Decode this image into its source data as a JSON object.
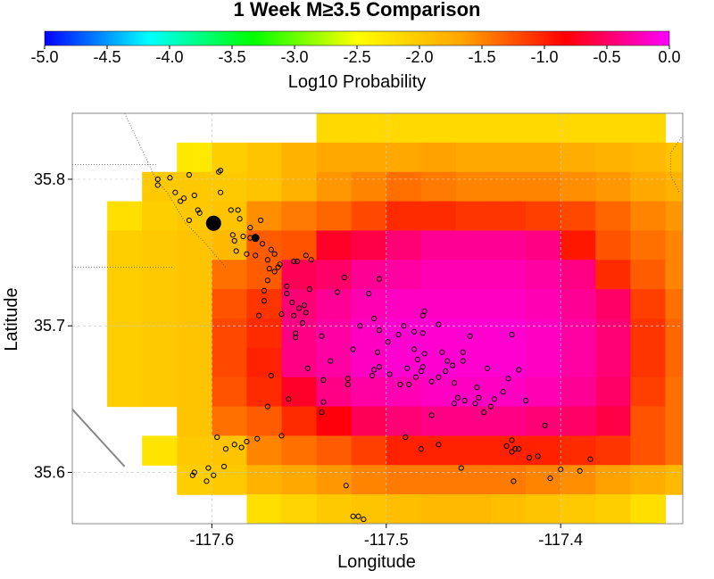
{
  "chart_data": {
    "type": "heatmap",
    "title": "1 Week M≥3.5 Comparison",
    "colorbar": {
      "label": "Log10 Probability",
      "range": [
        -5.0,
        0.0
      ],
      "tick_labels": [
        "-5.0",
        "-4.5",
        "-4.0",
        "-3.5",
        "-3.0",
        "-2.5",
        "-2.0",
        "-1.5",
        "-1.0",
        "-0.5",
        "0.0"
      ],
      "stops": [
        "#0000ff",
        "#00ffff",
        "#00ff00",
        "#ffff00",
        "#ffa500",
        "#ff0000",
        "#ff00ff"
      ]
    },
    "xlabel": "Longitude",
    "ylabel": "Latitude",
    "xlim": [
      -117.68,
      -117.33
    ],
    "ylim": [
      35.565,
      35.845
    ],
    "xticks": [
      -117.6,
      -117.5,
      -117.4
    ],
    "xtick_labels": [
      "-117.6",
      "-117.5",
      "-117.4"
    ],
    "yticks": [
      35.6,
      35.7,
      35.8
    ],
    "ytick_labels": [
      "35.6",
      "35.7",
      "35.8"
    ],
    "grid": true,
    "cell_size": {
      "lon": 0.02,
      "lat": 0.02
    },
    "cells": [
      {
        "row_lat": 35.835,
        "lon_start": -117.54,
        "values": [
          -2.15,
          -2.15,
          -2.15,
          -2.15,
          -2.15,
          -2.15,
          -2.15,
          -2.15,
          -2.15,
          -2.15
        ]
      },
      {
        "row_lat": 35.815,
        "lon_start": -117.62,
        "values": [
          -2.3,
          -2.05,
          -1.95,
          -1.8,
          -1.7,
          -1.7,
          -1.7,
          -1.65,
          -1.7,
          -1.7,
          -1.7,
          -1.75,
          -1.8,
          -1.85,
          -1.95,
          -2.05,
          -2.3
        ]
      },
      {
        "row_lat": 35.795,
        "lon_start": -117.64,
        "values": [
          -2.0,
          -2.0,
          -2.0,
          -1.95,
          -1.8,
          -1.6,
          -1.5,
          -1.4,
          -1.45,
          -1.5,
          -1.5,
          -1.5,
          -1.55,
          -1.6,
          -1.7,
          -1.8,
          -1.85,
          -1.95,
          -2.05,
          -2.3
        ]
      },
      {
        "row_lat": 35.775,
        "lon_start": -117.66,
        "values": [
          -2.2,
          -2.05,
          -2.0,
          -1.95,
          -1.55,
          -1.45,
          -1.35,
          -1.2,
          -1.05,
          -1.05,
          -1.1,
          -1.1,
          -1.15,
          -1.2,
          -1.35,
          -1.5,
          -1.6,
          -1.7,
          -1.8,
          -1.9,
          -2.1
        ]
      },
      {
        "row_lat": 35.755,
        "lon_start": -117.66,
        "values": [
          -2.05,
          -2.0,
          -1.95,
          -1.85,
          -1.3,
          -1.25,
          -0.7,
          -0.6,
          -0.45,
          -0.35,
          -0.35,
          -0.35,
          -0.4,
          -0.95,
          -1.25,
          -1.4,
          -1.5,
          -1.65,
          -1.75,
          -1.9,
          -2.0
        ]
      },
      {
        "row_lat": 35.735,
        "lon_start": -117.66,
        "values": [
          -2.05,
          -2.0,
          -1.95,
          -1.4,
          -1.3,
          -0.55,
          -0.5,
          -0.35,
          -0.3,
          -0.25,
          -0.25,
          -0.25,
          -0.3,
          -0.4,
          -1.05,
          -1.3,
          -1.5,
          -1.6,
          -1.75,
          -1.9,
          -2.1,
          -2.15
        ]
      },
      {
        "row_lat": 35.715,
        "lon_start": -117.66,
        "values": [
          -2.05,
          -2.0,
          -1.95,
          -1.25,
          -1.1,
          -0.45,
          -0.35,
          -0.25,
          -0.2,
          -0.2,
          -0.2,
          -0.2,
          -0.25,
          -0.35,
          -0.5,
          -1.15,
          -1.4,
          -1.55,
          -1.7,
          -1.85,
          -2.0,
          -2.1
        ]
      },
      {
        "row_lat": 35.695,
        "lon_start": -117.66,
        "values": [
          -2.05,
          -2.0,
          -1.95,
          -1.2,
          -1.05,
          -0.4,
          -0.3,
          -0.2,
          -0.15,
          -0.15,
          -0.15,
          -0.15,
          -0.2,
          -0.3,
          -0.45,
          -1.1,
          -1.35,
          -1.5,
          -1.7,
          -1.85,
          -2.0,
          -2.1
        ]
      },
      {
        "row_lat": 35.675,
        "lon_start": -117.66,
        "values": [
          -2.05,
          -2.0,
          -1.95,
          -1.2,
          -1.0,
          -0.4,
          -0.3,
          -0.2,
          -0.15,
          -0.15,
          -0.15,
          -0.15,
          -0.2,
          -0.3,
          -0.45,
          -1.1,
          -1.35,
          -1.5,
          -1.7,
          -1.85,
          -2.0,
          -2.05
        ]
      },
      {
        "row_lat": 35.655,
        "lon_start": -117.66,
        "values": [
          -2.05,
          -2.0,
          -1.95,
          -1.25,
          -1.05,
          -0.7,
          -0.4,
          -0.3,
          -0.25,
          -0.2,
          -0.2,
          -0.2,
          -0.25,
          -0.35,
          -0.5,
          -1.15,
          -1.4,
          -1.55,
          -1.7,
          -1.85,
          -2.0,
          -2.2
        ]
      },
      {
        "row_lat": 35.635,
        "lon_start": -117.62,
        "values": [
          -1.95,
          -1.4,
          -1.3,
          -1.05,
          -0.8,
          -0.55,
          -0.45,
          -0.4,
          -0.4,
          -0.4,
          -0.45,
          -0.5,
          -0.6,
          -1.25,
          -1.4,
          -1.55,
          -1.7,
          -1.85
        ]
      },
      {
        "row_lat": 35.615,
        "lon_start": -117.64,
        "values": [
          -2.25,
          -2.0,
          -1.95,
          -1.5,
          -1.4,
          -1.3,
          -1.15,
          -1.0,
          -1.0,
          -1.0,
          -1.0,
          -1.0,
          -1.05,
          -1.1,
          -1.25,
          -1.4,
          -1.55,
          -1.7,
          -1.85,
          -2.0
        ]
      },
      {
        "row_lat": 35.595,
        "lon_start": -117.62,
        "values": [
          -2.05,
          -2.0,
          -1.8,
          -1.7,
          -1.6,
          -1.5,
          -1.45,
          -1.45,
          -1.45,
          -1.45,
          -1.5,
          -1.55,
          -1.65,
          -1.75,
          -1.85,
          -1.95,
          -2.0,
          -2.1
        ]
      },
      {
        "row_lat": 35.575,
        "lon_start": -117.58,
        "values": [
          -2.2,
          -2.1,
          -2.0,
          -1.95,
          -1.9,
          -1.85,
          -1.85,
          -1.9,
          -1.95,
          -2.0,
          -2.05,
          -2.2
        ]
      }
    ],
    "mainshocks": [
      {
        "lon": -117.599,
        "lat": 35.77,
        "size": "large"
      },
      {
        "lon": -117.575,
        "lat": 35.76,
        "size": "medium"
      }
    ],
    "events": [
      [
        -117.631,
        35.8
      ],
      [
        -117.631,
        35.796
      ],
      [
        -117.624,
        35.801
      ],
      [
        -117.621,
        35.791
      ],
      [
        -117.616,
        35.787
      ],
      [
        -117.618,
        35.785
      ],
      [
        -117.613,
        35.803
      ],
      [
        -117.61,
        35.789
      ],
      [
        -117.608,
        35.779
      ],
      [
        -117.607,
        35.777
      ],
      [
        -117.613,
        35.772
      ],
      [
        -117.595,
        35.806
      ],
      [
        -117.596,
        35.805
      ],
      [
        -117.595,
        35.791
      ],
      [
        -117.589,
        35.779
      ],
      [
        -117.585,
        35.779
      ],
      [
        -117.584,
        35.773
      ],
      [
        -117.572,
        35.772
      ],
      [
        -117.578,
        35.767
      ],
      [
        -117.582,
        35.761
      ],
      [
        -117.587,
        35.758
      ],
      [
        -117.588,
        35.762
      ],
      [
        -117.578,
        35.76
      ],
      [
        -117.571,
        35.756
      ],
      [
        -117.566,
        35.752
      ],
      [
        -117.568,
        35.745
      ],
      [
        -117.575,
        35.748
      ],
      [
        -117.586,
        35.751
      ],
      [
        -117.58,
        35.749
      ],
      [
        -117.564,
        35.749
      ],
      [
        -117.562,
        35.74
      ],
      [
        -117.564,
        35.737
      ],
      [
        -117.561,
        35.742
      ],
      [
        -117.553,
        35.744
      ],
      [
        -117.551,
        35.744
      ],
      [
        -117.546,
        35.748
      ],
      [
        -117.543,
        35.745
      ],
      [
        -117.567,
        35.739
      ],
      [
        -117.568,
        35.731
      ],
      [
        -117.557,
        35.722
      ],
      [
        -117.557,
        35.727
      ],
      [
        -117.57,
        35.724
      ],
      [
        -117.554,
        35.716
      ],
      [
        -117.55,
        35.712
      ],
      [
        -117.553,
        35.707
      ],
      [
        -117.547,
        35.714
      ],
      [
        -117.544,
        35.725
      ],
      [
        -117.546,
        35.709
      ],
      [
        -117.548,
        35.702
      ],
      [
        -117.573,
        35.707
      ],
      [
        -117.57,
        35.717
      ],
      [
        -117.56,
        35.708
      ],
      [
        -117.552,
        35.695
      ],
      [
        -117.552,
        35.692
      ],
      [
        -117.566,
        35.666
      ],
      [
        -117.524,
        35.733
      ],
      [
        -117.528,
        35.723
      ],
      [
        -117.51,
        35.722
      ],
      [
        -117.504,
        35.732
      ],
      [
        -117.537,
        35.693
      ],
      [
        -117.515,
        35.7
      ],
      [
        -117.519,
        35.684
      ],
      [
        -117.507,
        35.705
      ],
      [
        -117.504,
        35.697
      ],
      [
        -117.505,
        35.682
      ],
      [
        -117.499,
        35.689
      ],
      [
        -117.493,
        35.694
      ],
      [
        -117.49,
        35.7
      ],
      [
        -117.484,
        35.696
      ],
      [
        -117.478,
        35.71
      ],
      [
        -117.479,
        35.707
      ],
      [
        -117.47,
        35.701
      ],
      [
        -117.479,
        35.695
      ],
      [
        -117.484,
        35.684
      ],
      [
        -117.498,
        35.667
      ],
      [
        -117.504,
        35.672
      ],
      [
        -117.488,
        35.671
      ],
      [
        -117.482,
        35.677
      ],
      [
        -117.478,
        35.681
      ],
      [
        -117.468,
        35.682
      ],
      [
        -117.465,
        35.676
      ],
      [
        -117.462,
        35.673
      ],
      [
        -117.466,
        35.669
      ],
      [
        -117.47,
        35.665
      ],
      [
        -117.474,
        35.662
      ],
      [
        -117.479,
        35.672
      ],
      [
        -117.48,
        35.669
      ],
      [
        -117.483,
        35.665
      ],
      [
        -117.487,
        35.66
      ],
      [
        -117.492,
        35.66
      ],
      [
        -117.522,
        35.664
      ],
      [
        -117.522,
        35.66
      ],
      [
        -117.532,
        35.676
      ],
      [
        -117.545,
        35.671
      ],
      [
        -117.536,
        35.663
      ],
      [
        -117.508,
        35.666
      ],
      [
        -117.507,
        35.67
      ],
      [
        -117.456,
        35.682
      ],
      [
        -117.452,
        35.693
      ],
      [
        -117.456,
        35.676
      ],
      [
        -117.461,
        35.661
      ],
      [
        -117.459,
        35.651
      ],
      [
        -117.461,
        35.647
      ],
      [
        -117.455,
        35.649
      ],
      [
        -117.448,
        35.658
      ],
      [
        -117.447,
        35.651
      ],
      [
        -117.438,
        35.65
      ],
      [
        -117.449,
        35.647
      ],
      [
        -117.444,
        35.641
      ],
      [
        -117.433,
        35.655
      ],
      [
        -117.43,
        35.664
      ],
      [
        -117.424,
        35.67
      ],
      [
        -117.42,
        35.649
      ],
      [
        -117.44,
        35.645
      ],
      [
        -117.442,
        35.671
      ],
      [
        -117.428,
        35.694
      ],
      [
        -117.428,
        35.622
      ],
      [
        -117.431,
        35.618
      ],
      [
        -117.428,
        35.614
      ],
      [
        -117.426,
        35.616
      ],
      [
        -117.424,
        35.616
      ],
      [
        -117.418,
        35.61
      ],
      [
        -117.413,
        35.611
      ],
      [
        -117.406,
        35.596
      ],
      [
        -117.427,
        35.594
      ],
      [
        -117.409,
        35.632
      ],
      [
        -117.4,
        35.602
      ],
      [
        -117.389,
        35.601
      ],
      [
        -117.383,
        35.609
      ],
      [
        -117.474,
        35.639
      ],
      [
        -117.47,
        35.619
      ],
      [
        -117.489,
        35.624
      ],
      [
        -117.48,
        35.616
      ],
      [
        -117.457,
        35.603
      ],
      [
        -117.536,
        35.648
      ],
      [
        -117.537,
        35.641
      ],
      [
        -117.556,
        35.65
      ],
      [
        -117.568,
        35.645
      ],
      [
        -117.56,
        35.625
      ],
      [
        -117.597,
        35.624
      ],
      [
        -117.587,
        35.619
      ],
      [
        -117.592,
        35.616
      ],
      [
        -117.58,
        35.621
      ],
      [
        -117.583,
        35.617
      ],
      [
        -117.574,
        35.623
      ],
      [
        -117.593,
        35.604
      ],
      [
        -117.602,
        35.603
      ],
      [
        -117.61,
        35.6
      ],
      [
        -117.611,
        35.598
      ],
      [
        -117.599,
        35.598
      ],
      [
        -117.603,
        35.594
      ],
      [
        -117.523,
        35.591
      ],
      [
        -117.519,
        35.57
      ],
      [
        -117.516,
        35.57
      ],
      [
        -117.513,
        35.568
      ]
    ],
    "boundaries": [
      {
        "style": "dotted",
        "points": [
          [
            -117.65,
            35.845
          ],
          [
            -117.632,
            35.8
          ],
          [
            -117.625,
            35.79
          ],
          [
            -117.615,
            35.77
          ],
          [
            -117.605,
            35.758
          ],
          [
            -117.592,
            35.74
          ]
        ]
      },
      {
        "style": "dotted",
        "points": [
          [
            -117.68,
            35.81
          ],
          [
            -117.632,
            35.81
          ]
        ]
      },
      {
        "style": "dotted",
        "points": [
          [
            -117.68,
            35.74
          ],
          [
            -117.622,
            35.74
          ]
        ]
      },
      {
        "style": "solid",
        "points": [
          [
            -117.68,
            35.643
          ],
          [
            -117.65,
            35.604
          ]
        ]
      },
      {
        "style": "dotted",
        "points": [
          [
            -117.33,
            35.83
          ],
          [
            -117.337,
            35.818
          ],
          [
            -117.337,
            35.803
          ],
          [
            -117.332,
            35.791
          ]
        ]
      }
    ]
  }
}
